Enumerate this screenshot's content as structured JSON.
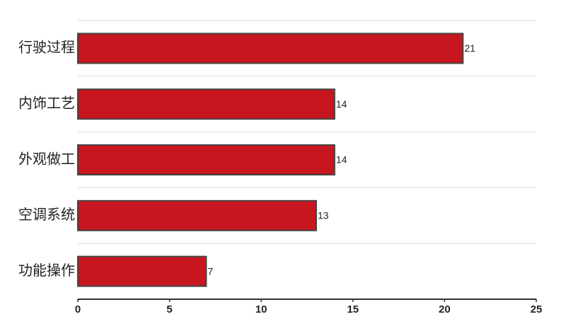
{
  "chart_data": {
    "type": "bar",
    "orientation": "horizontal",
    "categories": [
      "行驶过程",
      "内饰工艺",
      "外观做工",
      "空调系统",
      "功能操作"
    ],
    "values": [
      21,
      14,
      14,
      13,
      7
    ],
    "color": "#c8161f",
    "xlim": [
      0,
      25
    ],
    "xticks": [
      0,
      5,
      10,
      15,
      20,
      25
    ],
    "grid": true
  }
}
